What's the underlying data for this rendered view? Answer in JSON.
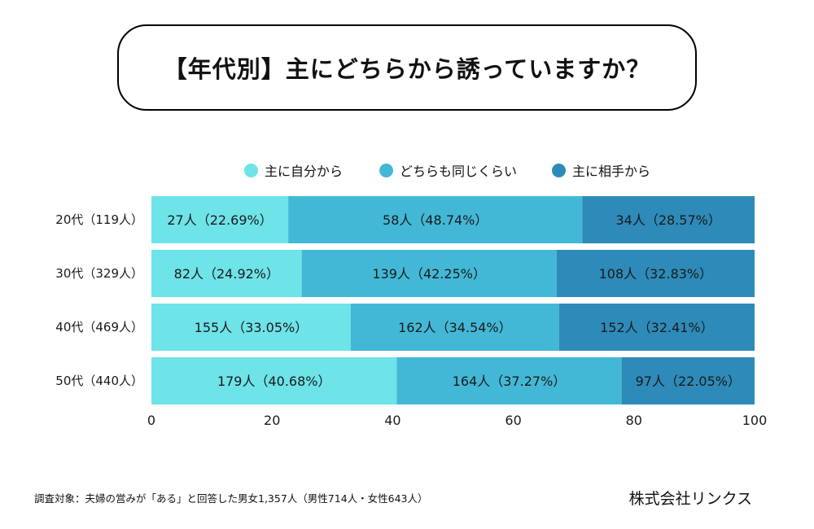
{
  "title": "【年代別】主にどちらから誘っていますか？",
  "footnote": "調査対象：夫婦の営みが「ある」と回答した男女1,357人（男性714人・女性643人）",
  "company": "株式会社リンクス",
  "colors": {
    "self": "#6ee3e8",
    "equal": "#43b8d6",
    "partner": "#2e8ab8",
    "text": "#1a1a1a"
  },
  "chart_data": {
    "type": "bar",
    "orientation": "horizontal",
    "stacked": true,
    "categories": [
      "20代（119人）",
      "30代（329人）",
      "40代（469人）",
      "50代（440人）"
    ],
    "series": [
      {
        "name": "主に自分から",
        "values": [
          22.69,
          24.92,
          33.05,
          40.68
        ],
        "labels": [
          "27人（22.69%）",
          "82人（24.92%）",
          "155人（33.05%）",
          "179人（40.68%）"
        ]
      },
      {
        "name": "どちらも同じくらい",
        "values": [
          48.74,
          42.25,
          34.54,
          37.27
        ],
        "labels": [
          "58人（48.74%）",
          "139人（42.25%）",
          "162人（34.54%）",
          "164人（37.27%）"
        ]
      },
      {
        "name": "主に相手から",
        "values": [
          28.57,
          32.83,
          32.41,
          22.05
        ],
        "labels": [
          "34人（28.57%）",
          "108人（32.83%）",
          "152人（32.41%）",
          "97人（22.05%）"
        ]
      }
    ],
    "xlim": [
      0,
      100
    ],
    "xticks": [
      "0",
      "20",
      "40",
      "60",
      "80",
      "100"
    ],
    "legend_position": "top",
    "grid": false
  }
}
